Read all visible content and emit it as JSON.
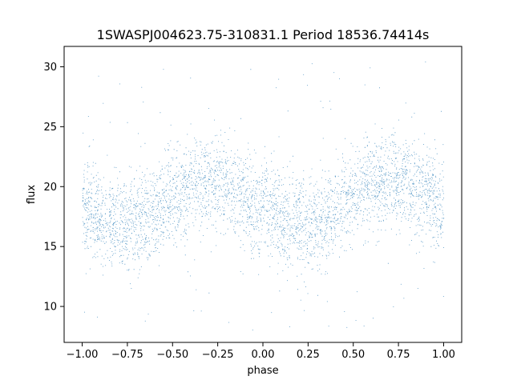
{
  "chart_data": {
    "type": "scatter",
    "title": "1SWASPJ004623.75-310831.1 Period 18536.74414s",
    "xlabel": "phase",
    "ylabel": "flux",
    "xlim": [
      -1.1,
      1.1
    ],
    "ylim": [
      7,
      31.7
    ],
    "xticks": [
      -1.0,
      -0.75,
      -0.5,
      -0.25,
      0.0,
      0.25,
      0.5,
      0.75,
      1.0
    ],
    "xtick_labels": [
      "−1.00",
      "−0.75",
      "−0.50",
      "−0.25",
      "0.00",
      "0.25",
      "0.50",
      "0.75",
      "1.00"
    ],
    "yticks": [
      10,
      15,
      20,
      25,
      30
    ],
    "ytick_labels": [
      "10",
      "15",
      "20",
      "25",
      "30"
    ],
    "grid": false,
    "legend": "none",
    "point_color": "#1f77b4",
    "series": [
      {
        "x_range": [
          -1.0,
          1.0
        ],
        "mean_curve": {
          "phase": [
            -1.0,
            -0.875,
            -0.75,
            -0.625,
            -0.5,
            -0.375,
            -0.25,
            -0.125,
            0.0,
            0.125,
            0.25,
            0.375,
            0.5,
            0.625,
            0.75,
            0.875,
            1.0
          ],
          "flux": [
            18.2,
            17.2,
            17.0,
            17.6,
            19.0,
            20.3,
            20.4,
            19.3,
            18.0,
            17.0,
            17.0,
            17.8,
            19.2,
            20.4,
            20.5,
            19.7,
            18.3
          ]
        },
        "band_half_width": 3.0,
        "outlier_range": [
          8,
          30.5
        ]
      }
    ]
  }
}
